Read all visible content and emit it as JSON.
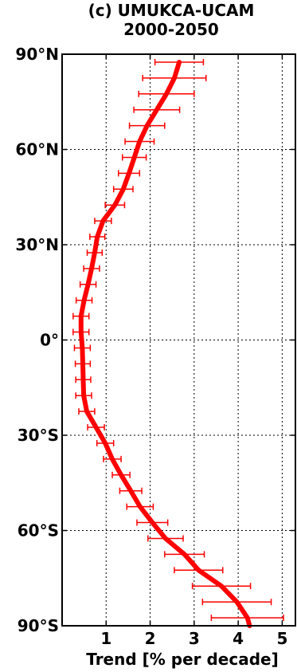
{
  "chart_data": {
    "type": "line",
    "title": [
      "(c) UMUKCA-UCAM",
      "2000-2050"
    ],
    "xlabel": "Trend [% per decade]",
    "ylabel": "",
    "xlim": [
      0,
      5.3
    ],
    "ylim": [
      -90,
      90
    ],
    "xticks": [
      1,
      2,
      3,
      4,
      5
    ],
    "xtick_labels": [
      "1",
      "2",
      "3",
      "4",
      "5"
    ],
    "yticks": [
      90,
      60,
      30,
      0,
      -30,
      -60,
      -90
    ],
    "ytick_labels": [
      "90°N",
      "60°N",
      "30°N",
      "0°",
      "30°S",
      "60°S",
      "90°S"
    ],
    "grid": true,
    "line_color": "#ff0000",
    "series": [
      {
        "points": [
          {
            "lat": 87.5,
            "trend": 2.66,
            "err": 0.55
          },
          {
            "lat": 82.5,
            "trend": 2.55,
            "err": 0.72
          },
          {
            "lat": 77.5,
            "trend": 2.37,
            "err": 0.63
          },
          {
            "lat": 72.5,
            "trend": 2.15,
            "err": 0.52
          },
          {
            "lat": 67.5,
            "trend": 1.93,
            "err": 0.4
          },
          {
            "lat": 62.5,
            "trend": 1.76,
            "err": 0.33
          },
          {
            "lat": 57.5,
            "trend": 1.64,
            "err": 0.27
          },
          {
            "lat": 52.5,
            "trend": 1.52,
            "err": 0.24
          },
          {
            "lat": 47.5,
            "trend": 1.39,
            "err": 0.22
          },
          {
            "lat": 42.5,
            "trend": 1.2,
            "err": 0.22
          },
          {
            "lat": 37.5,
            "trend": 0.93,
            "err": 0.19
          },
          {
            "lat": 32.5,
            "trend": 0.8,
            "err": 0.17
          },
          {
            "lat": 27.5,
            "trend": 0.74,
            "err": 0.17
          },
          {
            "lat": 22.5,
            "trend": 0.67,
            "err": 0.18
          },
          {
            "lat": 17.5,
            "trend": 0.59,
            "err": 0.18
          },
          {
            "lat": 12.5,
            "trend": 0.5,
            "err": 0.18
          },
          {
            "lat": 7.5,
            "trend": 0.43,
            "err": 0.18
          },
          {
            "lat": 2.5,
            "trend": 0.43,
            "err": 0.18
          },
          {
            "lat": -2.5,
            "trend": 0.46,
            "err": 0.18
          },
          {
            "lat": -7.5,
            "trend": 0.47,
            "err": 0.17
          },
          {
            "lat": -12.5,
            "trend": 0.48,
            "err": 0.17
          },
          {
            "lat": -17.5,
            "trend": 0.49,
            "err": 0.18
          },
          {
            "lat": -22.5,
            "trend": 0.56,
            "err": 0.18
          },
          {
            "lat": -27.5,
            "trend": 0.77,
            "err": 0.19
          },
          {
            "lat": -32.5,
            "trend": 0.98,
            "err": 0.19
          },
          {
            "lat": -37.5,
            "trend": 1.14,
            "err": 0.2
          },
          {
            "lat": -42.5,
            "trend": 1.34,
            "err": 0.2
          },
          {
            "lat": -47.5,
            "trend": 1.56,
            "err": 0.25
          },
          {
            "lat": -52.5,
            "trend": 1.77,
            "err": 0.3
          },
          {
            "lat": -57.5,
            "trend": 2.05,
            "err": 0.35
          },
          {
            "lat": -62.5,
            "trend": 2.35,
            "err": 0.4
          },
          {
            "lat": -67.5,
            "trend": 2.78,
            "err": 0.45
          },
          {
            "lat": -72.5,
            "trend": 3.1,
            "err": 0.55
          },
          {
            "lat": -77.5,
            "trend": 3.62,
            "err": 0.66
          },
          {
            "lat": -82.5,
            "trend": 3.97,
            "err": 0.78
          },
          {
            "lat": -87.5,
            "trend": 4.21,
            "err": 0.82
          },
          {
            "lat": -90.0,
            "trend": 4.26,
            "err": 0.88
          }
        ]
      }
    ]
  }
}
